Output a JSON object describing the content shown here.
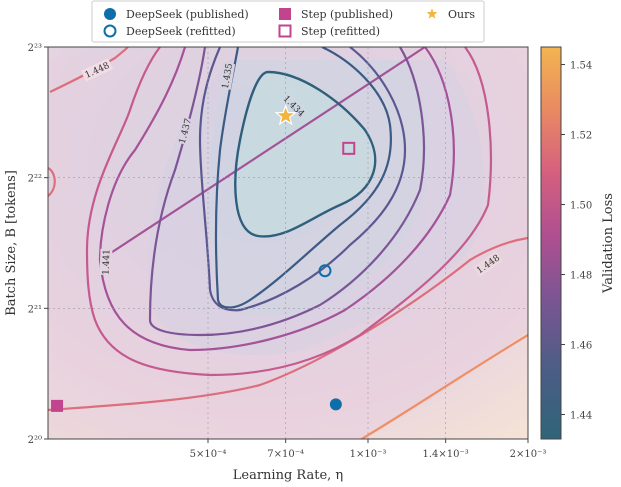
{
  "chart_data": {
    "type": "contour",
    "xlabel": "Learning Rate, η",
    "ylabel": "Batch Size, B [tokens]",
    "colorbar_label": "Validation Loss",
    "x_scale": "log",
    "y_scale": "log2",
    "xlim": [
      0.00025,
      0.002
    ],
    "ylim": [
      1048576,
      8388608
    ],
    "x_ticks": [
      {
        "value": 0.0005,
        "label": "5×10⁻⁴"
      },
      {
        "value": 0.0007,
        "label": "7×10⁻⁴"
      },
      {
        "value": 0.001,
        "label": "1×10⁻³"
      },
      {
        "value": 0.0014,
        "label": "1.4×10⁻³"
      },
      {
        "value": 0.002,
        "label": "2×10⁻³"
      }
    ],
    "y_ticks": [
      {
        "value": 1048576,
        "label": "2²⁰"
      },
      {
        "value": 2097152,
        "label": "2²¹"
      },
      {
        "value": 4194304,
        "label": "2²²"
      },
      {
        "value": 8388608,
        "label": "2²³"
      }
    ],
    "colorbar": {
      "min": 1.433,
      "max": 1.545,
      "ticks": [
        "1.44",
        "1.46",
        "1.48",
        "1.50",
        "1.52",
        "1.54"
      ],
      "tick_values": [
        1.44,
        1.46,
        1.48,
        1.5,
        1.52,
        1.54
      ],
      "colors": [
        "#2f6479",
        "#5e5a8c",
        "#9a4f94",
        "#c9568a",
        "#e4766f",
        "#eea050",
        "#f3b451"
      ]
    },
    "contour_levels": [
      {
        "label": "1.434",
        "value": 1.434,
        "color": "#2f5f7c"
      },
      {
        "label": "1.435",
        "value": 1.435,
        "color": "#3b5a84"
      },
      {
        "label": "1.437",
        "value": 1.437,
        "color": "#5a5890"
      },
      {
        "label": "",
        "value": 1.439,
        "color": "#7d5596"
      },
      {
        "label": "1.441",
        "value": 1.441,
        "color": "#a45399"
      },
      {
        "label": "",
        "value": 1.444,
        "color": "#c55a8f"
      },
      {
        "label": "1.448",
        "value": 1.448,
        "color": "#dc6e7d"
      },
      {
        "label": "",
        "value": 1.46,
        "color": "#ef8e63"
      }
    ],
    "points": [
      {
        "name": "DeepSeek (published)",
        "x": 0.00087,
        "y": 1260000,
        "marker": "filled-circle",
        "color": "#0e6fa8"
      },
      {
        "name": "DeepSeek (refitted)",
        "x": 0.00083,
        "y": 2560000,
        "marker": "open-circle",
        "color": "#0e6fa8"
      },
      {
        "name": "Step (published)",
        "x": 0.00026,
        "y": 1250000,
        "marker": "filled-square",
        "color": "#c2448f"
      },
      {
        "name": "Step (refitted)",
        "x": 0.00092,
        "y": 4900000,
        "marker": "open-square",
        "color": "#c2448f"
      },
      {
        "name": "Ours",
        "x": 0.0007,
        "y": 5820000,
        "marker": "star",
        "color": "#f2b640"
      }
    ],
    "legend": {
      "placement": "top-center",
      "columns": 3,
      "entries": [
        "DeepSeek (published)",
        "DeepSeek (refitted)",
        "Step (published)",
        "Step (refitted)",
        "Ours"
      ]
    },
    "grid": true
  }
}
